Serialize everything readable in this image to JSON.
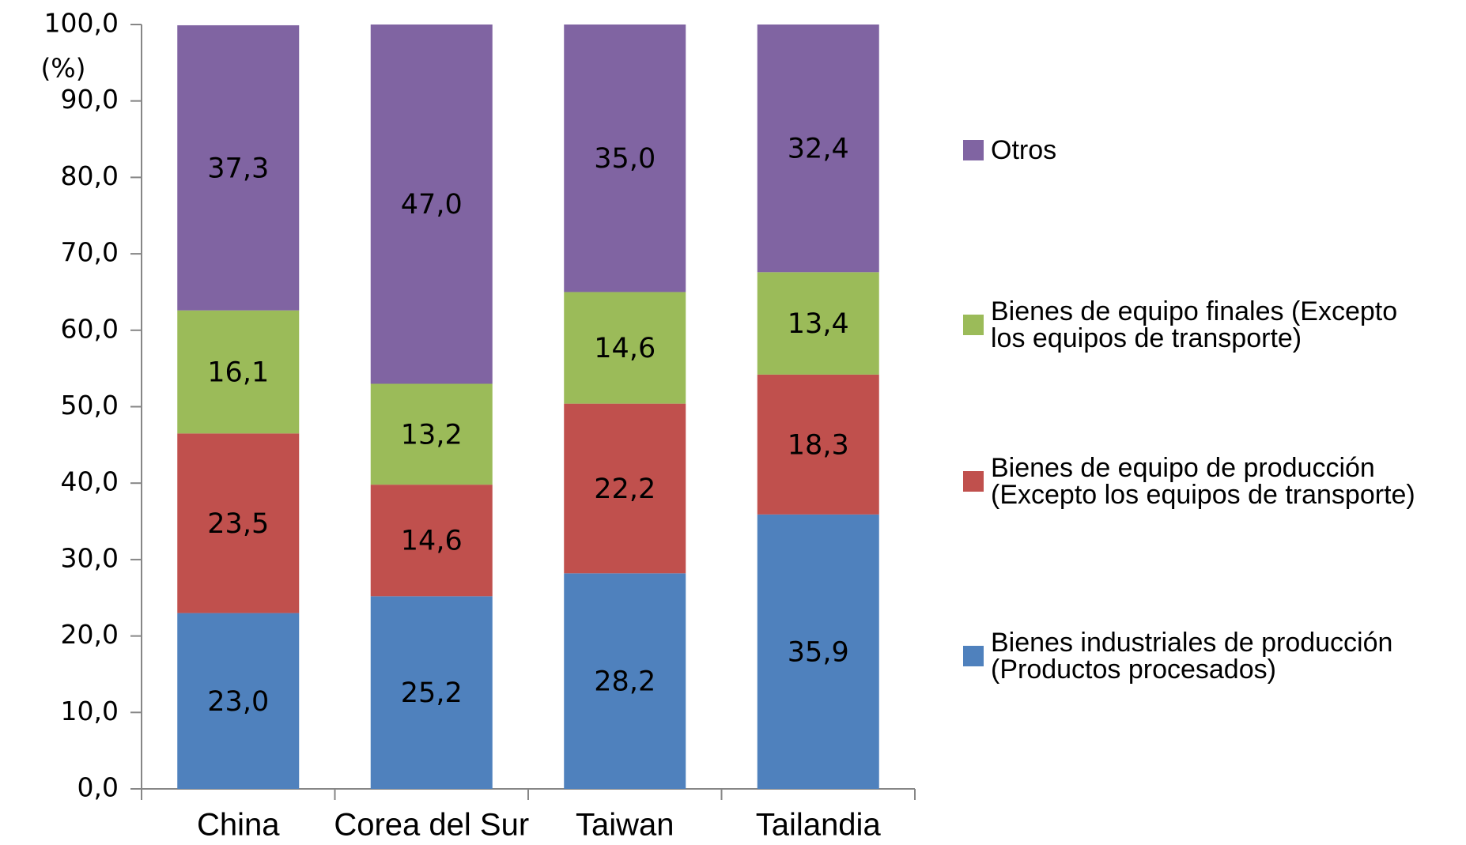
{
  "chart_data": {
    "type": "stacked_bar",
    "y_label": "(%)",
    "categories": [
      "China",
      "Corea del Sur",
      "Taiwan",
      "Tailandia"
    ],
    "series": [
      {
        "name": "Bienes industriales de producción\n(Productos procesados)",
        "color": "#4f81bd",
        "values": [
          23.0,
          25.2,
          28.2,
          35.9
        ],
        "value_labels": [
          "23,0",
          "25,2",
          "28,2",
          "35,9"
        ]
      },
      {
        "name": "Bienes de equipo de producción\n(Excepto los equipos de transporte)",
        "color": "#c0504d",
        "values": [
          23.5,
          14.6,
          22.2,
          18.3
        ],
        "value_labels": [
          "23,5",
          "14,6",
          "22,2",
          "18,3"
        ]
      },
      {
        "name": "Bienes de equipo finales (Excepto\nlos equipos de transporte)",
        "color": "#9bbb59",
        "values": [
          16.1,
          13.2,
          14.6,
          13.4
        ],
        "value_labels": [
          "16,1",
          "13,2",
          "14,6",
          "13,4"
        ]
      },
      {
        "name": "Otros",
        "color": "#8064a2",
        "values": [
          37.3,
          47.0,
          35.0,
          32.4
        ],
        "value_labels": [
          "37,3",
          "47,0",
          "35,0",
          "32,4"
        ]
      }
    ],
    "ylim": [
      0,
      100
    ],
    "yticks": [
      {
        "value": 0,
        "label": "0,0"
      },
      {
        "value": 10,
        "label": "10,0"
      },
      {
        "value": 20,
        "label": "20,0"
      },
      {
        "value": 30,
        "label": "30,0"
      },
      {
        "value": 40,
        "label": "40,0"
      },
      {
        "value": 50,
        "label": "50,0"
      },
      {
        "value": 60,
        "label": "60,0"
      },
      {
        "value": 70,
        "label": "70,0"
      },
      {
        "value": 80,
        "label": "80,0"
      },
      {
        "value": 90,
        "label": "90,0"
      },
      {
        "value": 100,
        "label": "100,0"
      }
    ],
    "legend": "right"
  }
}
